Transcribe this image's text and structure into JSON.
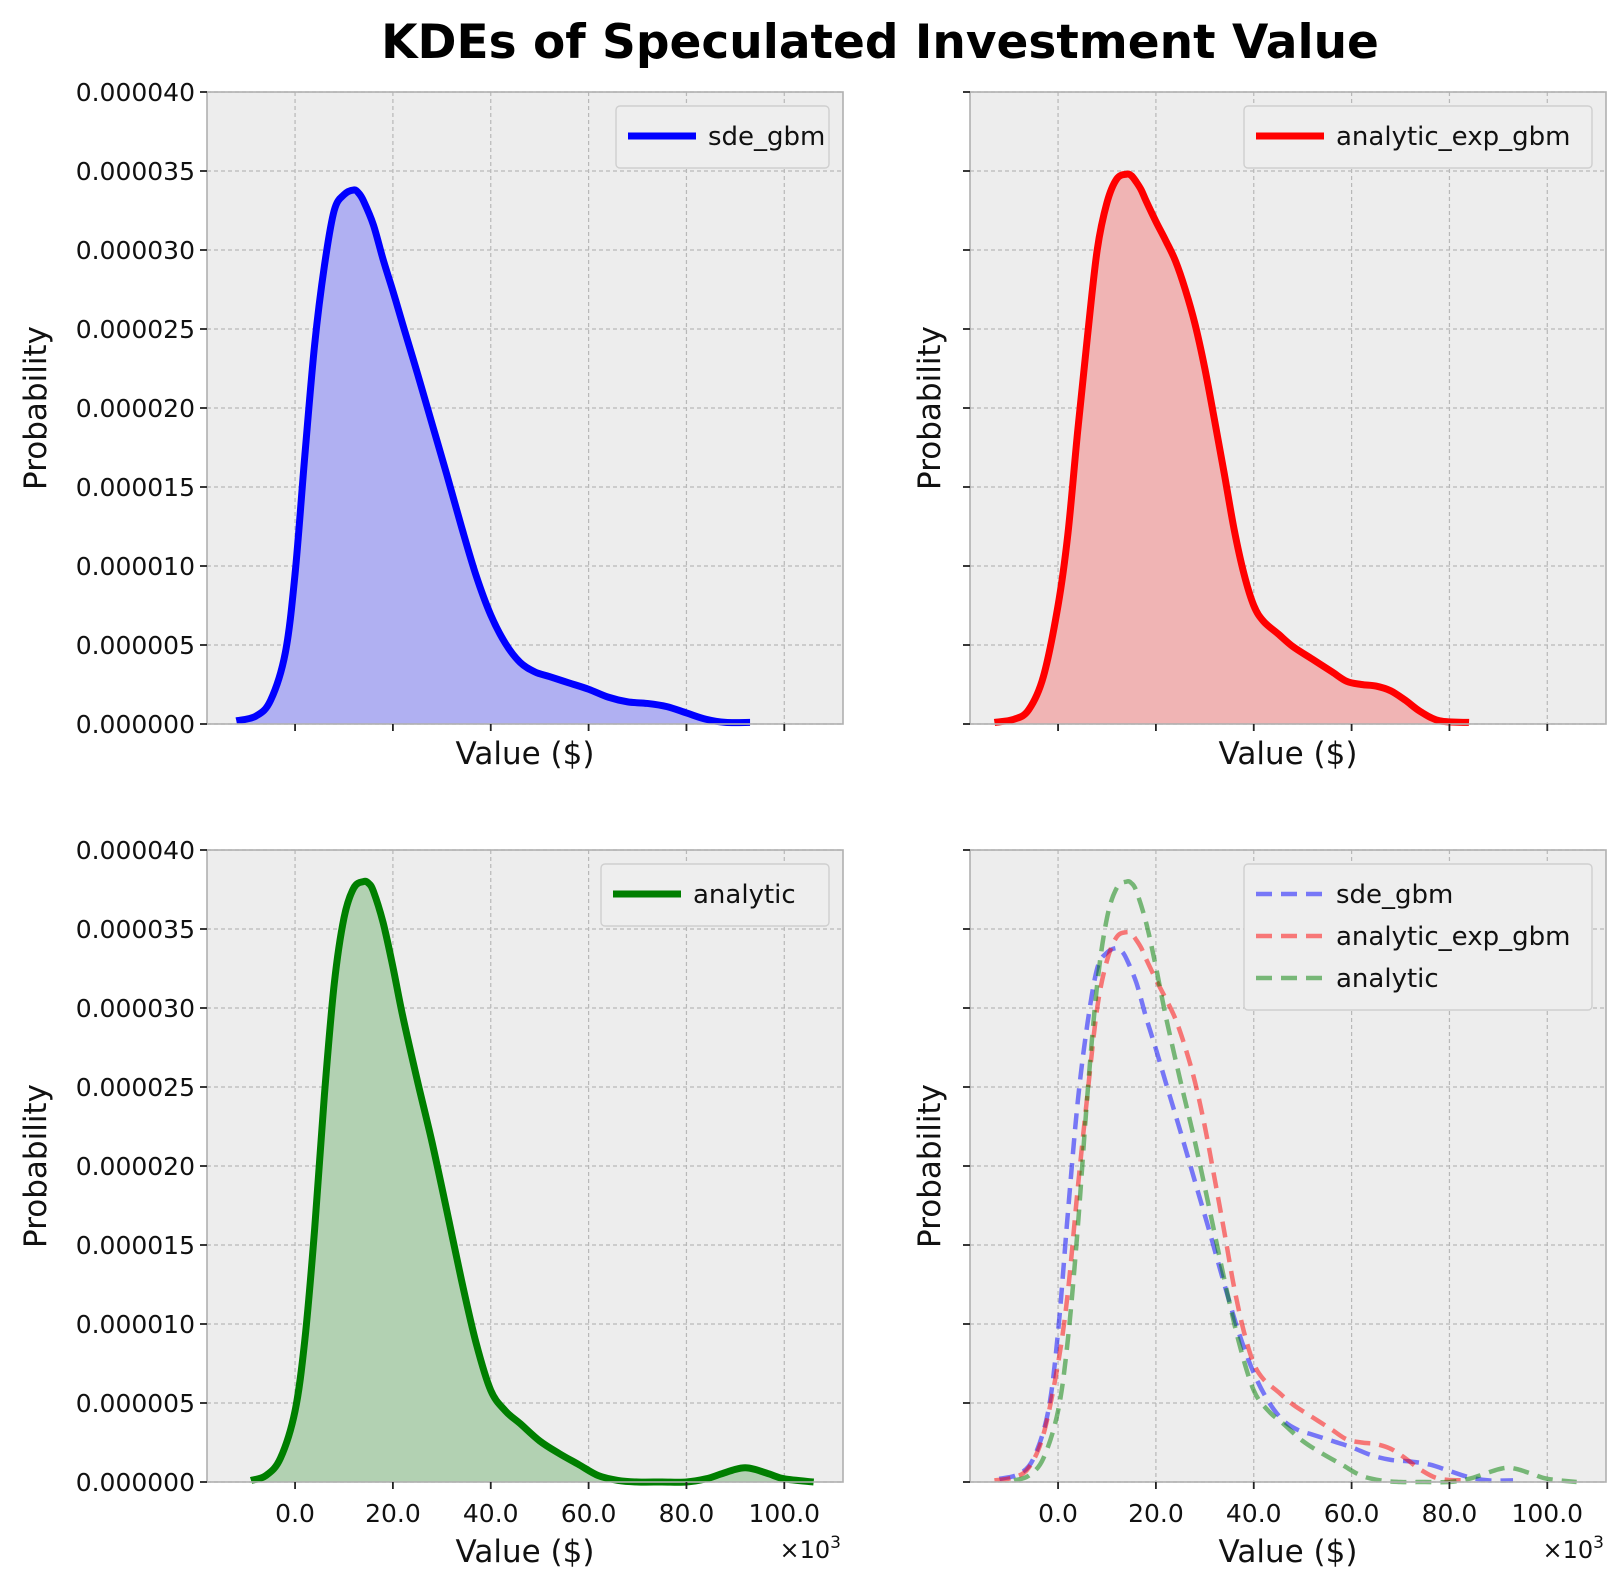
{
  "figure": {
    "title": "KDEs of Speculated Investment Value",
    "x_multiplier_label": "×10",
    "x_multiplier_exp": "3"
  },
  "colors": {
    "panel_bg": "#ededed",
    "grid": "#b8b8b8",
    "spine": "#b0b0b0",
    "sde_gbm": "#0000ff",
    "analytic_exp_gbm": "#ff0000",
    "analytic": "#007f00",
    "sde_gbm_fill": "#b0b0f2",
    "analytic_exp_gbm_fill": "#f0b4b4",
    "analytic_fill": "#b2d1b2"
  },
  "chart_data": [
    {
      "type": "area",
      "panel": "top-left",
      "xlabel": "Value ($)",
      "ylabel": "Probability",
      "x_tick_labels_visible": false,
      "y_tick_labels_visible": true,
      "xlim": [
        -18,
        112
      ],
      "ylim": [
        0,
        4e-05
      ],
      "xticks": [
        0,
        20,
        40,
        60,
        80,
        100
      ],
      "yticks": [
        "0.000000",
        "0.000005",
        "0.000010",
        "0.000015",
        "0.000020",
        "0.000025",
        "0.000030",
        "0.000035",
        "0.000040"
      ],
      "grid": true,
      "legend_position": "top-right",
      "series": [
        {
          "name": "sde_gbm",
          "color_key": "sde_gbm",
          "style": "solid",
          "filled": true,
          "x": [
            -12,
            -8,
            -5,
            -2,
            0,
            2,
            4,
            6,
            8,
            10,
            12,
            13,
            14,
            16,
            18,
            20,
            22,
            25,
            28,
            31,
            34,
            37,
            40,
            43,
            46,
            49,
            52,
            56,
            60,
            64,
            68,
            72,
            76,
            80,
            84,
            88,
            93
          ],
          "y": [
            2e-07,
            5e-07,
            1.5e-06,
            4.5e-06,
            9.5e-06,
            1.7e-05,
            2.4e-05,
            2.9e-05,
            3.25e-05,
            3.35e-05,
            3.38e-05,
            3.36e-05,
            3.31e-05,
            3.16e-05,
            2.94e-05,
            2.74e-05,
            2.53e-05,
            2.22e-05,
            1.9e-05,
            1.58e-05,
            1.25e-05,
            9.4e-06,
            6.9e-06,
            5.1e-06,
            3.9e-06,
            3.3e-06,
            3e-06,
            2.6e-06,
            2.2e-06,
            1.7e-06,
            1.4e-06,
            1.3e-06,
            1.1e-06,
            7e-07,
            3e-07,
            1e-07,
            1e-07
          ]
        }
      ]
    },
    {
      "type": "area",
      "panel": "top-right",
      "xlabel": "Value ($)",
      "ylabel": "Probability",
      "x_tick_labels_visible": false,
      "y_tick_labels_visible": false,
      "xlim": [
        -18,
        112
      ],
      "ylim": [
        0,
        4e-05
      ],
      "xticks": [
        0,
        20,
        40,
        60,
        80,
        100
      ],
      "yticks": [
        "0.000000",
        "0.000005",
        "0.000010",
        "0.000015",
        "0.000020",
        "0.000025",
        "0.000030",
        "0.000035",
        "0.000040"
      ],
      "grid": true,
      "legend_position": "top-right",
      "series": [
        {
          "name": "analytic_exp_gbm",
          "color_key": "analytic_exp_gbm",
          "style": "solid",
          "filled": true,
          "x": [
            -13,
            -9,
            -6,
            -3,
            0,
            2,
            4,
            6,
            8,
            10,
            12,
            14,
            15,
            16,
            17,
            18,
            20,
            22,
            24,
            26,
            28,
            30,
            32,
            34,
            36,
            38,
            40,
            42,
            45,
            48,
            52,
            56,
            59,
            62,
            65,
            68,
            71,
            74,
            78,
            84
          ],
          "y": [
            1e-07,
            3e-07,
            9e-07,
            3e-06,
            7.5e-06,
            1.2e-05,
            1.85e-05,
            2.45e-05,
            3e-05,
            3.3e-05,
            3.45e-05,
            3.48e-05,
            3.47e-05,
            3.43e-05,
            3.38e-05,
            3.31e-05,
            3.18e-05,
            3.06e-05,
            2.93e-05,
            2.75e-05,
            2.53e-05,
            2.25e-05,
            1.92e-05,
            1.58e-05,
            1.23e-05,
            9.5e-06,
            7.5e-06,
            6.5e-06,
            5.7e-06,
            4.9e-06,
            4.1e-06,
            3.3e-06,
            2.7e-06,
            2.5e-06,
            2.4e-06,
            2.1e-06,
            1.5e-06,
            8e-07,
            2e-07,
            1e-07
          ]
        }
      ]
    },
    {
      "type": "area",
      "panel": "bottom-left",
      "xlabel": "Value ($)",
      "ylabel": "Probability",
      "x_tick_labels_visible": true,
      "y_tick_labels_visible": true,
      "xlim": [
        -18,
        112
      ],
      "ylim": [
        0,
        4e-05
      ],
      "xticks": [
        0,
        20,
        40,
        60,
        80,
        100
      ],
      "xtick_labels": [
        "0.0",
        "20.0",
        "40.0",
        "60.0",
        "80.0",
        "100.0"
      ],
      "yticks": [
        "0.000000",
        "0.000005",
        "0.000010",
        "0.000015",
        "0.000020",
        "0.000025",
        "0.000030",
        "0.000035",
        "0.000040"
      ],
      "grid": true,
      "legend_position": "top-right",
      "series": [
        {
          "name": "analytic",
          "color_key": "analytic",
          "style": "solid",
          "filled": true,
          "x": [
            -9,
            -6,
            -3,
            0,
            2,
            4,
            6,
            8,
            10,
            12,
            14,
            15,
            16,
            18,
            20,
            22,
            25,
            28,
            31,
            34,
            37,
            40,
            43,
            46,
            50,
            54,
            58,
            62,
            66,
            70,
            75,
            80,
            84,
            87,
            90,
            92,
            94,
            97,
            100,
            106
          ],
          "y": [
            1e-07,
            4e-07,
            1.5e-06,
            4.5e-06,
            9e-06,
            1.6e-05,
            2.45e-05,
            3.15e-05,
            3.57e-05,
            3.76e-05,
            3.8e-05,
            3.79e-05,
            3.74e-05,
            3.54e-05,
            3.26e-05,
            2.95e-05,
            2.54e-05,
            2.15e-05,
            1.72e-05,
            1.28e-05,
            8.8e-06,
            5.8e-06,
            4.5e-06,
            3.7e-06,
            2.6e-06,
            1.8e-06,
            1.1e-06,
            4e-07,
            1e-07,
            0.0,
            0.0,
            0.0,
            2e-07,
            5e-07,
            8e-07,
            9e-07,
            8e-07,
            5e-07,
            2e-07,
            0.0
          ]
        }
      ]
    },
    {
      "type": "line",
      "panel": "bottom-right",
      "xlabel": "Value ($)",
      "ylabel": "Probability",
      "x_tick_labels_visible": true,
      "y_tick_labels_visible": false,
      "xlim": [
        -18,
        112
      ],
      "ylim": [
        0,
        4e-05
      ],
      "xticks": [
        0,
        20,
        40,
        60,
        80,
        100
      ],
      "xtick_labels": [
        "0.0",
        "20.0",
        "40.0",
        "60.0",
        "80.0",
        "100.0"
      ],
      "yticks": [
        "0.000000",
        "0.000005",
        "0.000010",
        "0.000015",
        "0.000020",
        "0.000025",
        "0.000030",
        "0.000035",
        "0.000040"
      ],
      "grid": true,
      "legend_position": "top-right",
      "series": [
        {
          "name": "sde_gbm",
          "color_key": "sde_gbm",
          "style": "dashed",
          "opacity": 0.5,
          "filled": false,
          "x": [
            -12,
            -8,
            -5,
            -2,
            0,
            2,
            4,
            6,
            8,
            10,
            12,
            13,
            14,
            16,
            18,
            20,
            22,
            25,
            28,
            31,
            34,
            37,
            40,
            43,
            46,
            49,
            52,
            56,
            60,
            64,
            68,
            72,
            76,
            80,
            84,
            88,
            93
          ],
          "y": [
            2e-07,
            5e-07,
            1.5e-06,
            4.5e-06,
            9.5e-06,
            1.7e-05,
            2.4e-05,
            2.9e-05,
            3.25e-05,
            3.35e-05,
            3.38e-05,
            3.36e-05,
            3.31e-05,
            3.16e-05,
            2.94e-05,
            2.74e-05,
            2.53e-05,
            2.22e-05,
            1.9e-05,
            1.58e-05,
            1.25e-05,
            9.4e-06,
            6.9e-06,
            5.1e-06,
            3.9e-06,
            3.3e-06,
            3e-06,
            2.6e-06,
            2.2e-06,
            1.7e-06,
            1.4e-06,
            1.3e-06,
            1.1e-06,
            7e-07,
            3e-07,
            1e-07,
            1e-07
          ]
        },
        {
          "name": "analytic_exp_gbm",
          "color_key": "analytic_exp_gbm",
          "style": "dashed",
          "opacity": 0.5,
          "filled": false,
          "x": [
            -13,
            -9,
            -6,
            -3,
            0,
            2,
            4,
            6,
            8,
            10,
            12,
            14,
            15,
            16,
            17,
            18,
            20,
            22,
            24,
            26,
            28,
            30,
            32,
            34,
            36,
            38,
            40,
            42,
            45,
            48,
            52,
            56,
            59,
            62,
            65,
            68,
            71,
            74,
            78,
            84
          ],
          "y": [
            1e-07,
            3e-07,
            9e-07,
            3e-06,
            7.5e-06,
            1.2e-05,
            1.85e-05,
            2.45e-05,
            3e-05,
            3.3e-05,
            3.45e-05,
            3.48e-05,
            3.47e-05,
            3.43e-05,
            3.38e-05,
            3.31e-05,
            3.18e-05,
            3.06e-05,
            2.93e-05,
            2.75e-05,
            2.53e-05,
            2.25e-05,
            1.92e-05,
            1.58e-05,
            1.23e-05,
            9.5e-06,
            7.5e-06,
            6.5e-06,
            5.7e-06,
            4.9e-06,
            4.1e-06,
            3.3e-06,
            2.7e-06,
            2.5e-06,
            2.4e-06,
            2.1e-06,
            1.5e-06,
            8e-07,
            2e-07,
            1e-07
          ]
        },
        {
          "name": "analytic",
          "color_key": "analytic",
          "style": "dashed",
          "opacity": 0.5,
          "filled": false,
          "x": [
            -9,
            -6,
            -3,
            0,
            2,
            4,
            6,
            8,
            10,
            12,
            14,
            15,
            16,
            18,
            20,
            22,
            25,
            28,
            31,
            34,
            37,
            40,
            43,
            46,
            50,
            54,
            58,
            62,
            66,
            70,
            75,
            80,
            84,
            87,
            90,
            92,
            94,
            97,
            100,
            106
          ],
          "y": [
            1e-07,
            4e-07,
            1.5e-06,
            4.5e-06,
            9e-06,
            1.6e-05,
            2.45e-05,
            3.15e-05,
            3.57e-05,
            3.76e-05,
            3.8e-05,
            3.79e-05,
            3.74e-05,
            3.54e-05,
            3.26e-05,
            2.95e-05,
            2.54e-05,
            2.15e-05,
            1.72e-05,
            1.28e-05,
            8.8e-06,
            5.8e-06,
            4.5e-06,
            3.7e-06,
            2.6e-06,
            1.8e-06,
            1.1e-06,
            4e-07,
            1e-07,
            0.0,
            0.0,
            0.0,
            2e-07,
            5e-07,
            8e-07,
            9e-07,
            8e-07,
            5e-07,
            2e-07,
            0.0
          ]
        }
      ]
    }
  ]
}
